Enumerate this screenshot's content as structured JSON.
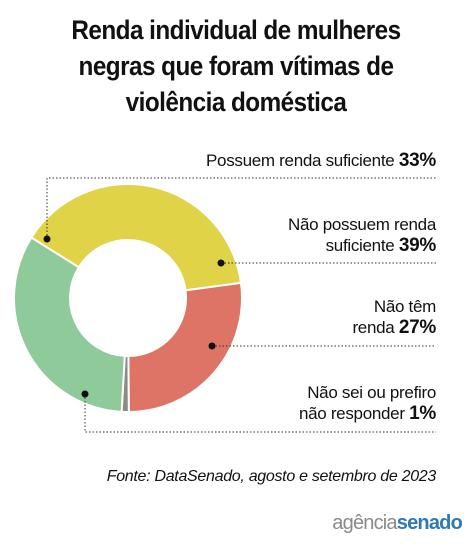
{
  "title_lines": [
    "Renda individual de mulheres",
    "negras que foram vítimas de",
    "violência doméstica"
  ],
  "chart_data": {
    "type": "pie",
    "title": "Renda individual de mulheres negras que foram vítimas de violência doméstica",
    "slices": [
      {
        "label_lines": [
          "Possuem renda suficiente"
        ],
        "value": 33,
        "value_text": "33%",
        "color": "#8fca9b"
      },
      {
        "label_lines": [
          "Não possuem renda",
          "suficiente"
        ],
        "value": 39,
        "value_text": "39%",
        "color": "#e0d347"
      },
      {
        "label_lines": [
          "Não têm",
          "renda"
        ],
        "value": 27,
        "value_text": "27%",
        "color": "#dd7466"
      },
      {
        "label_lines": [
          "Não sei ou prefiro",
          "não responder"
        ],
        "value": 1,
        "value_text": "1%",
        "color": "#8a8a8a"
      }
    ]
  },
  "source": "Fonte: DataSenado, agosto e setembro de 2023",
  "brand": {
    "agencia": "agência",
    "senado": "senado"
  }
}
